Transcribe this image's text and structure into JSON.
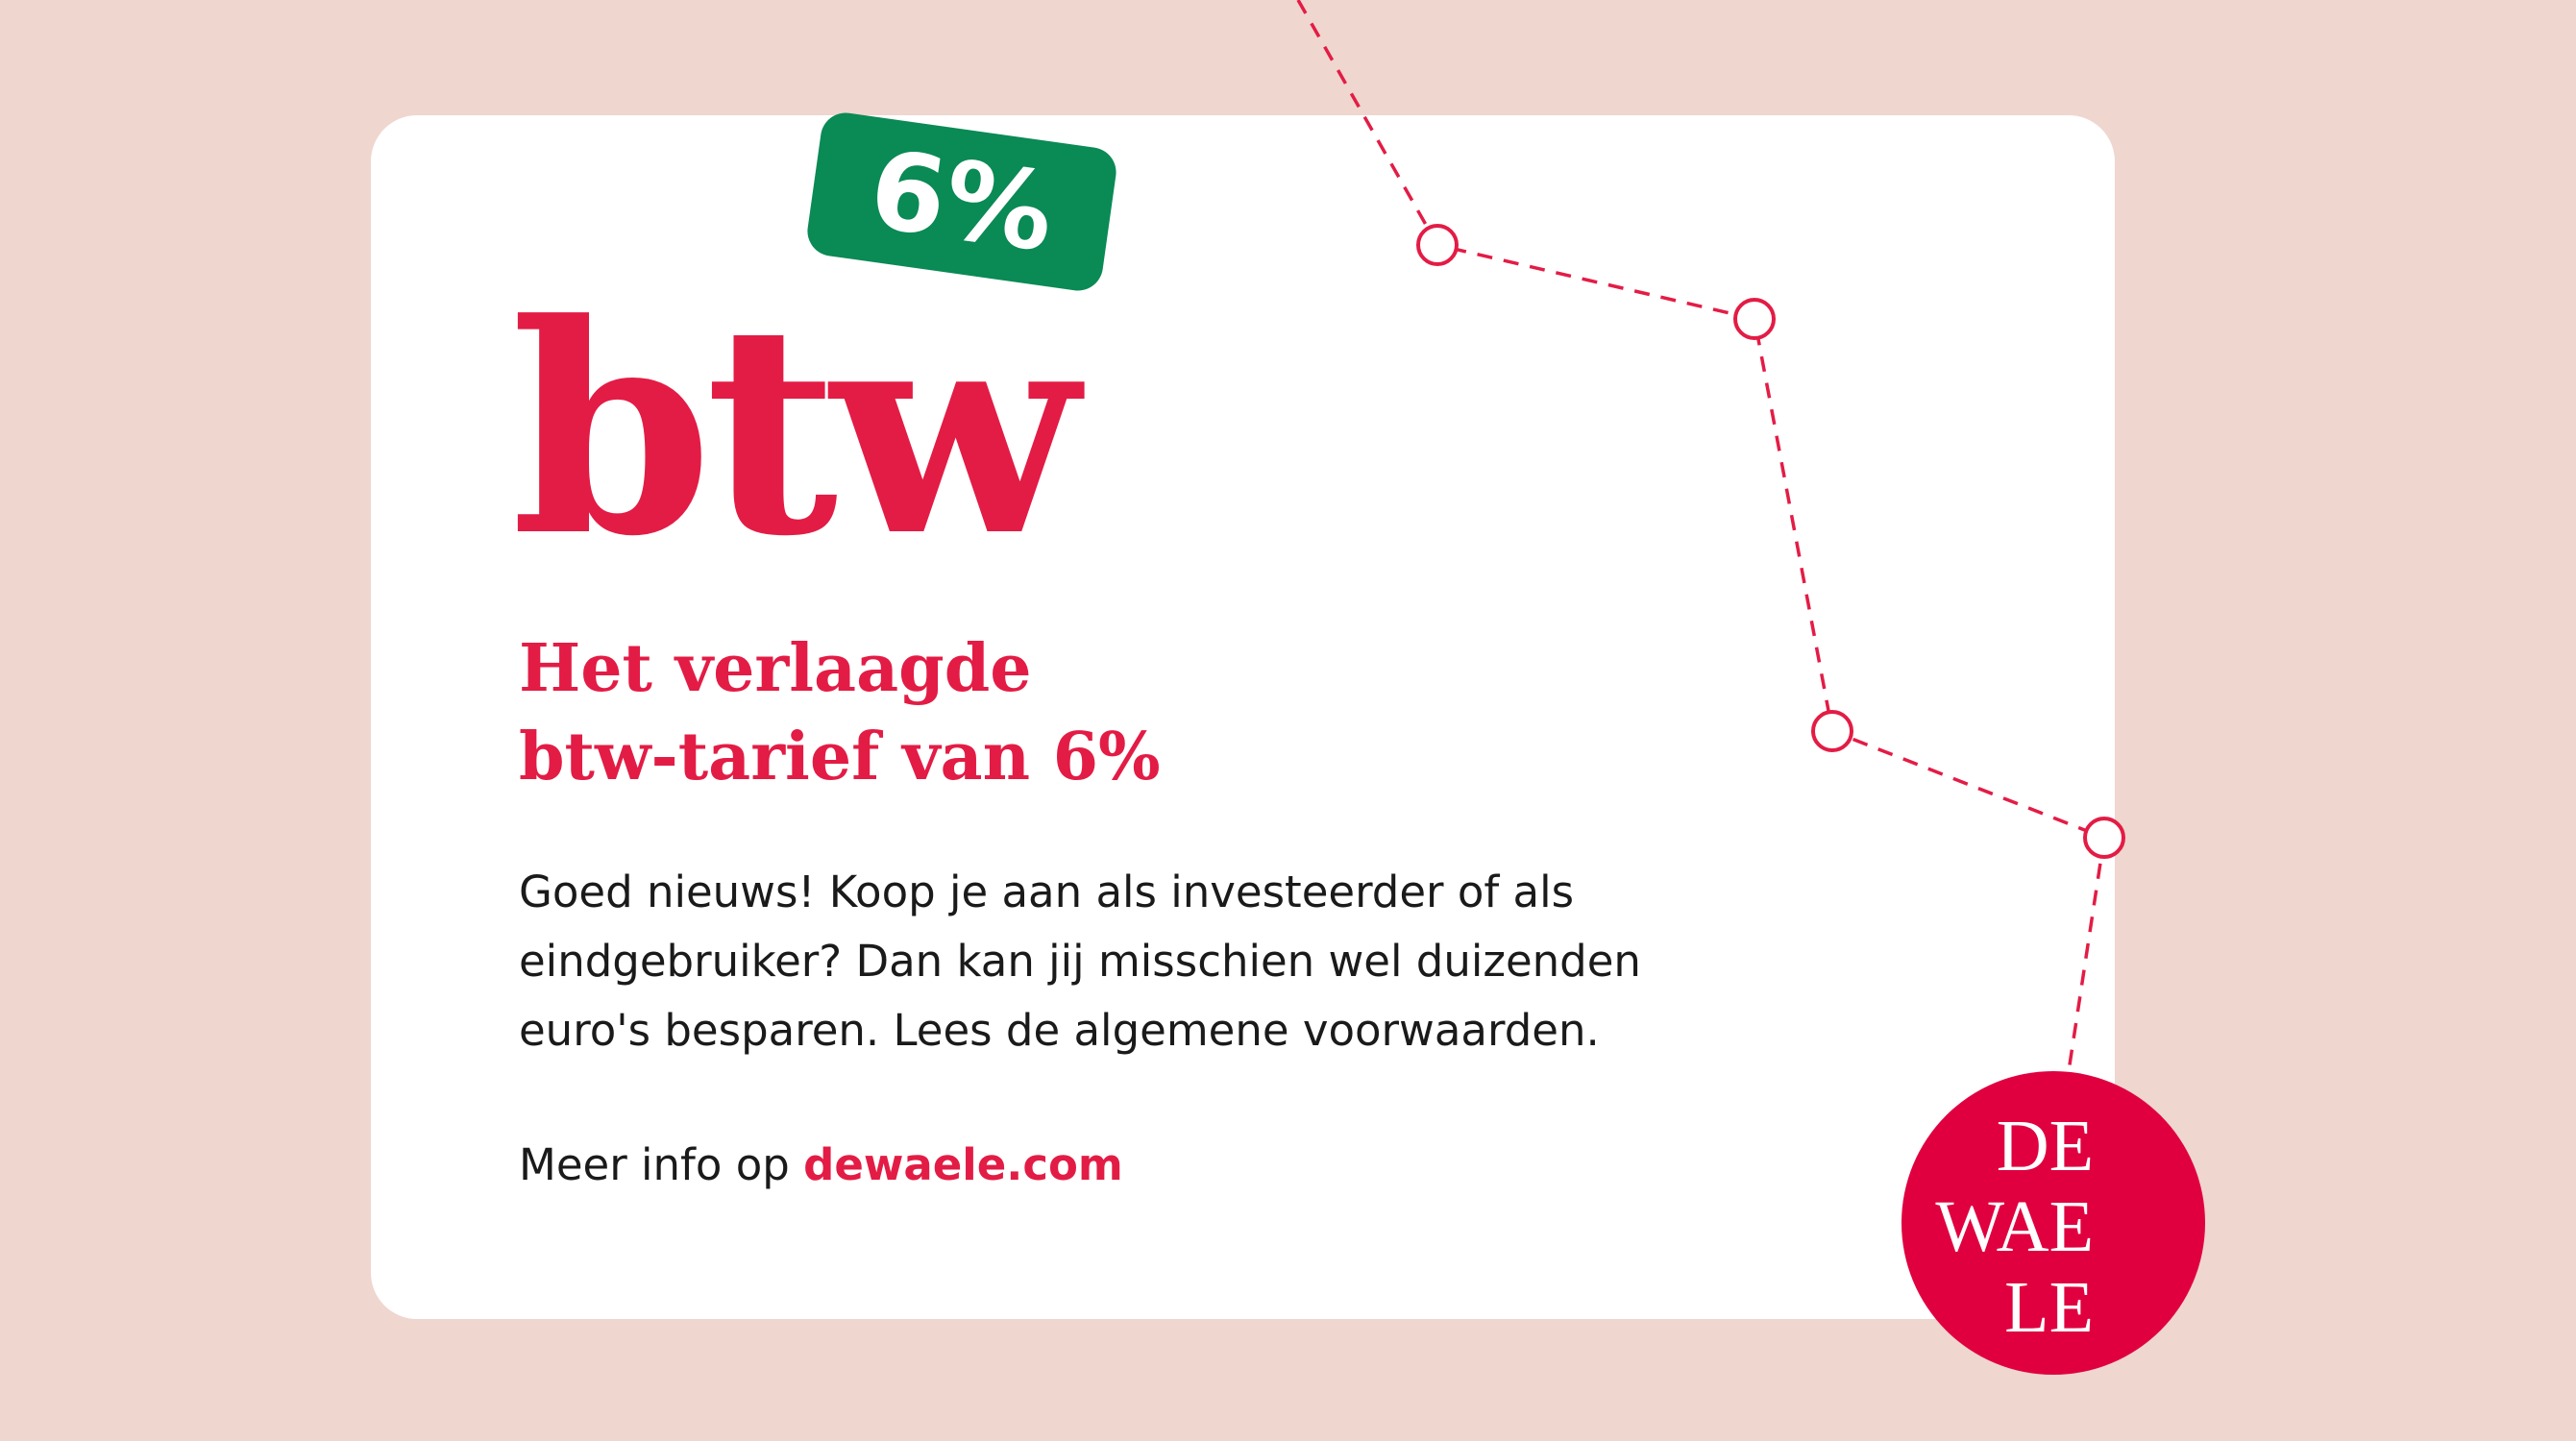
{
  "logo_word": "btw",
  "badge": "6%",
  "heading": {
    "line1": "Het verlaagde",
    "line2": "btw-tarief van 6%"
  },
  "body": {
    "line1": "Goed nieuws! Koop je aan als investeerder of als",
    "line2": "eindgebruiker? Dan kan jij misschien wel duizenden",
    "line3": "euro's besparen. Lees de algemene voorwaarden."
  },
  "more": {
    "prefix": "Meer info op ",
    "link": "dewaele.com"
  },
  "brand_logo": {
    "line1": "DE",
    "line2": "WAE",
    "line3": "LE"
  },
  "colors": {
    "background": "#efd6cf",
    "accent": "#e31c45",
    "badge": "#0a8a55",
    "logo": "#e0003f"
  }
}
